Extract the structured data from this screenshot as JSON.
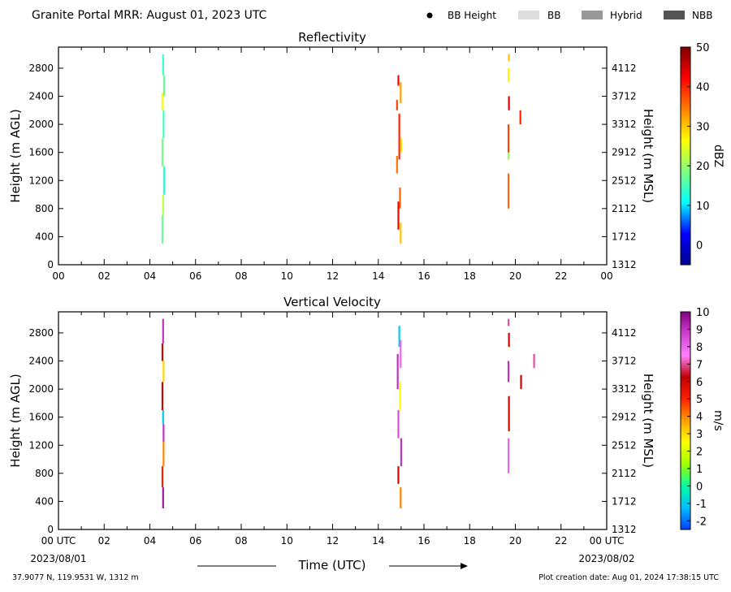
{
  "header": {
    "title": "Granite Portal MRR:  August 01, 2023 UTC",
    "legend": [
      {
        "label": "BB Height",
        "symbol": "dot",
        "color": "#000000"
      },
      {
        "label": "BB",
        "symbol": "box",
        "color": "#dddddd"
      },
      {
        "label": "Hybrid",
        "symbol": "box",
        "color": "#999999"
      },
      {
        "label": "NBB",
        "symbol": "box",
        "color": "#555555"
      }
    ]
  },
  "footer": {
    "location": "37.9077 N, 119.9531 W, 1312 m",
    "created": "Plot creation date: Aug 01, 2024 17:38:15 UTC",
    "xlabel": "Time (UTC)",
    "start_date": "2023/08/01",
    "end_date": "2023/08/02"
  },
  "chart_data": [
    {
      "type": "heatmap",
      "title": "Reflectivity",
      "xlabel": "Time (UTC)",
      "ylabel": "Height (m AGL)",
      "ylabel_right": "Height (m MSL)",
      "colorbar_label": "dBZ",
      "xlim": [
        0,
        24
      ],
      "ylim": [
        0,
        3100
      ],
      "x_ticks": [
        "00",
        "02",
        "04",
        "06",
        "08",
        "10",
        "12",
        "14",
        "16",
        "18",
        "20",
        "22",
        "00"
      ],
      "y_ticks": [
        0,
        400,
        800,
        1200,
        1600,
        2000,
        2400,
        2800
      ],
      "y_ticks_right": [
        1312,
        1712,
        2112,
        2512,
        2912,
        3312,
        3712,
        4112
      ],
      "cbar_range": [
        -5,
        50
      ],
      "cbar_ticks": [
        0,
        10,
        20,
        30,
        40,
        50
      ],
      "cbar_colors": [
        "#00008f",
        "#0000ff",
        "#00ffff",
        "#7fff7f",
        "#ffff00",
        "#ff8000",
        "#ff0000",
        "#800000"
      ],
      "segments": [
        {
          "t": 4.58,
          "h0": 2700,
          "h1": 3000,
          "v": 14
        },
        {
          "t": 4.62,
          "h0": 2400,
          "h1": 2700,
          "v": 17
        },
        {
          "t": 4.55,
          "h0": 2200,
          "h1": 2450,
          "v": 26
        },
        {
          "t": 4.6,
          "h0": 1800,
          "h1": 2200,
          "v": 15
        },
        {
          "t": 4.55,
          "h0": 1400,
          "h1": 1800,
          "v": 18
        },
        {
          "t": 4.62,
          "h0": 1000,
          "h1": 1400,
          "v": 13
        },
        {
          "t": 4.58,
          "h0": 700,
          "h1": 1000,
          "v": 22
        },
        {
          "t": 4.55,
          "h0": 300,
          "h1": 700,
          "v": 17
        },
        {
          "t": 14.88,
          "h0": 2550,
          "h1": 2700,
          "v": 42
        },
        {
          "t": 14.82,
          "h0": 2200,
          "h1": 2350,
          "v": 38
        },
        {
          "t": 14.98,
          "h0": 2300,
          "h1": 2600,
          "v": 32
        },
        {
          "t": 14.92,
          "h0": 1500,
          "h1": 2150,
          "v": 40
        },
        {
          "t": 14.82,
          "h0": 1300,
          "h1": 1550,
          "v": 35
        },
        {
          "t": 15.0,
          "h0": 1600,
          "h1": 1800,
          "v": 28
        },
        {
          "t": 14.95,
          "h0": 800,
          "h1": 1100,
          "v": 36
        },
        {
          "t": 14.88,
          "h0": 500,
          "h1": 900,
          "v": 42
        },
        {
          "t": 14.98,
          "h0": 300,
          "h1": 600,
          "v": 30
        },
        {
          "t": 19.72,
          "h0": 2900,
          "h1": 3000,
          "v": 30
        },
        {
          "t": 19.7,
          "h0": 2600,
          "h1": 2800,
          "v": 27
        },
        {
          "t": 19.72,
          "h0": 2200,
          "h1": 2400,
          "v": 44
        },
        {
          "t": 19.7,
          "h0": 1500,
          "h1": 2000,
          "v": 38
        },
        {
          "t": 19.7,
          "h0": 1500,
          "h1": 1600,
          "v": 20
        },
        {
          "t": 19.7,
          "h0": 800,
          "h1": 1300,
          "v": 36
        },
        {
          "t": 20.22,
          "h0": 2000,
          "h1": 2200,
          "v": 40
        }
      ]
    },
    {
      "type": "heatmap",
      "title": "Vertical Velocity",
      "xlabel": "Time (UTC)",
      "ylabel": "Height (m AGL)",
      "ylabel_right": "Height (m MSL)",
      "colorbar_label": "m/s",
      "xlim": [
        0,
        24
      ],
      "ylim": [
        0,
        3100
      ],
      "x_ticks": [
        "00 UTC",
        "02",
        "04",
        "06",
        "08",
        "10",
        "12",
        "14",
        "16",
        "18",
        "20",
        "22",
        "00 UTC"
      ],
      "y_ticks": [
        0,
        400,
        800,
        1200,
        1600,
        2000,
        2400,
        2800
      ],
      "y_ticks_right": [
        1312,
        1712,
        2112,
        2512,
        2912,
        3312,
        3712,
        4112
      ],
      "cbar_range": [
        -2.5,
        10
      ],
      "cbar_ticks": [
        -2,
        -1,
        0,
        1,
        2,
        3,
        4,
        5,
        6,
        7,
        8,
        9,
        10
      ],
      "cbar_colors": [
        "#0040ff",
        "#00c0ff",
        "#00ffa0",
        "#a0ff00",
        "#ffff00",
        "#ffa000",
        "#ff2000",
        "#c00000",
        "#ff80ff",
        "#d040d0",
        "#800080"
      ],
      "segments": [
        {
          "t": 4.58,
          "h0": 2650,
          "h1": 3000,
          "v": 9
        },
        {
          "t": 4.55,
          "h0": 2400,
          "h1": 2650,
          "v": 6
        },
        {
          "t": 4.6,
          "h0": 2100,
          "h1": 2400,
          "v": 3
        },
        {
          "t": 4.55,
          "h0": 1700,
          "h1": 2100,
          "v": 6
        },
        {
          "t": 4.58,
          "h0": 1500,
          "h1": 1700,
          "v": -1
        },
        {
          "t": 4.6,
          "h0": 1250,
          "h1": 1500,
          "v": 9
        },
        {
          "t": 4.6,
          "h0": 900,
          "h1": 1250,
          "v": 4
        },
        {
          "t": 4.55,
          "h0": 600,
          "h1": 900,
          "v": 5
        },
        {
          "t": 4.58,
          "h0": 300,
          "h1": 600,
          "v": 9.5
        },
        {
          "t": 14.92,
          "h0": 2600,
          "h1": 2900,
          "v": -1
        },
        {
          "t": 14.98,
          "h0": 2300,
          "h1": 2700,
          "v": 8
        },
        {
          "t": 14.85,
          "h0": 2000,
          "h1": 2500,
          "v": 9
        },
        {
          "t": 14.95,
          "h0": 1700,
          "h1": 2100,
          "v": 2.5
        },
        {
          "t": 14.88,
          "h0": 1300,
          "h1": 1700,
          "v": 8.5
        },
        {
          "t": 15.0,
          "h0": 900,
          "h1": 1300,
          "v": 9
        },
        {
          "t": 14.88,
          "h0": 650,
          "h1": 900,
          "v": 6
        },
        {
          "t": 14.98,
          "h0": 300,
          "h1": 600,
          "v": 4
        },
        {
          "t": 19.7,
          "h0": 2900,
          "h1": 3000,
          "v": 7
        },
        {
          "t": 19.72,
          "h0": 2600,
          "h1": 2800,
          "v": 6
        },
        {
          "t": 19.7,
          "h0": 2100,
          "h1": 2400,
          "v": 9
        },
        {
          "t": 19.72,
          "h0": 1400,
          "h1": 1900,
          "v": 6
        },
        {
          "t": 19.7,
          "h0": 800,
          "h1": 1300,
          "v": 8
        },
        {
          "t": 20.25,
          "h0": 2000,
          "h1": 2200,
          "v": 6
        },
        {
          "t": 20.82,
          "h0": 2300,
          "h1": 2500,
          "v": 7
        }
      ]
    }
  ]
}
